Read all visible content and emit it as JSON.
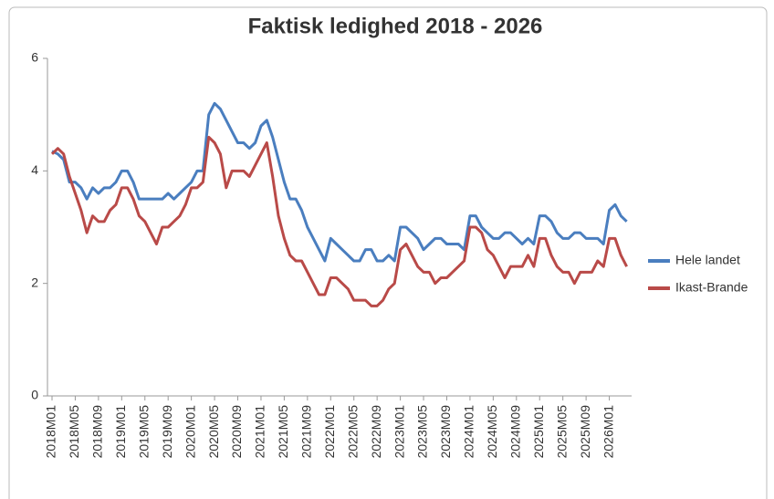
{
  "chart_data": {
    "type": "line",
    "title": "Faktisk ledighed 2018 - 2026",
    "categories": [
      "2018M01",
      null,
      null,
      null,
      "2018M05",
      null,
      null,
      null,
      "2018M09",
      null,
      null,
      null,
      "2019M01",
      null,
      null,
      null,
      "2019M05",
      null,
      null,
      null,
      "2019M09",
      null,
      null,
      null,
      "2020M01",
      null,
      null,
      null,
      "2020M05",
      null,
      null,
      null,
      "2020M09",
      null,
      null,
      null,
      "2021M01",
      null,
      null,
      null,
      "2021M05",
      null,
      null,
      null,
      "2021M09",
      null,
      null,
      null,
      "2022M01",
      null,
      null,
      null,
      "2022M05",
      null,
      null,
      null,
      "2022M09",
      null,
      null,
      null,
      "2023M01",
      null,
      null,
      null,
      "2023M05",
      null,
      null,
      null,
      "2023M09",
      null,
      null,
      null,
      "2024M01",
      null,
      null,
      null,
      "2024M05",
      null,
      null,
      null,
      "2024M09",
      null,
      null,
      null,
      "2025M01",
      null,
      null,
      null,
      "2025M05",
      null,
      null,
      null,
      "2025M09",
      null,
      null,
      null,
      "2026M01",
      null,
      null,
      null
    ],
    "series": [
      {
        "name": "Hele landet",
        "color": "#4a7ebf",
        "values": [
          4.35,
          4.3,
          4.2,
          3.8,
          3.8,
          3.7,
          3.5,
          3.7,
          3.6,
          3.7,
          3.7,
          3.8,
          4.0,
          4.0,
          3.8,
          3.5,
          3.5,
          3.5,
          3.5,
          3.5,
          3.6,
          3.5,
          3.6,
          3.7,
          3.8,
          4.0,
          4.0,
          5.0,
          5.2,
          5.1,
          4.9,
          4.7,
          4.5,
          4.5,
          4.4,
          4.5,
          4.8,
          4.9,
          4.6,
          4.2,
          3.8,
          3.5,
          3.5,
          3.3,
          3.0,
          2.8,
          2.6,
          2.4,
          2.8,
          2.7,
          2.6,
          2.5,
          2.4,
          2.4,
          2.6,
          2.6,
          2.4,
          2.4,
          2.5,
          2.4,
          3.0,
          3.0,
          2.9,
          2.8,
          2.6,
          2.7,
          2.8,
          2.8,
          2.7,
          2.7,
          2.7,
          2.6,
          3.2,
          3.2,
          3.0,
          2.9,
          2.8,
          2.8,
          2.9,
          2.9,
          2.8,
          2.7,
          2.8,
          2.7,
          3.2,
          3.2,
          3.1,
          2.9,
          2.8,
          2.8,
          2.9,
          2.9,
          2.8,
          2.8,
          2.8,
          2.7,
          3.3,
          3.4,
          3.2,
          3.1
        ]
      },
      {
        "name": "Ikast-Brande",
        "color": "#b94a48",
        "values": [
          4.3,
          4.4,
          4.3,
          3.9,
          3.6,
          3.3,
          2.9,
          3.2,
          3.1,
          3.1,
          3.3,
          3.4,
          3.7,
          3.7,
          3.5,
          3.2,
          3.1,
          2.9,
          2.7,
          3.0,
          3.0,
          3.1,
          3.2,
          3.4,
          3.7,
          3.7,
          3.8,
          4.6,
          4.5,
          4.3,
          3.7,
          4.0,
          4.0,
          4.0,
          3.9,
          4.1,
          4.3,
          4.5,
          3.9,
          3.2,
          2.8,
          2.5,
          2.4,
          2.4,
          2.2,
          2.0,
          1.8,
          1.8,
          2.1,
          2.1,
          2.0,
          1.9,
          1.7,
          1.7,
          1.7,
          1.6,
          1.6,
          1.7,
          1.9,
          2.0,
          2.6,
          2.7,
          2.5,
          2.3,
          2.2,
          2.2,
          2.0,
          2.1,
          2.1,
          2.2,
          2.3,
          2.4,
          3.0,
          3.0,
          2.9,
          2.6,
          2.5,
          2.3,
          2.1,
          2.3,
          2.3,
          2.3,
          2.5,
          2.3,
          2.8,
          2.8,
          2.5,
          2.3,
          2.2,
          2.2,
          2.0,
          2.2,
          2.2,
          2.2,
          2.4,
          2.3,
          2.8,
          2.8,
          2.5,
          2.3
        ]
      }
    ],
    "ylim": [
      0,
      6
    ],
    "yticks": [
      0,
      2,
      4,
      6
    ],
    "grid": false,
    "legend": "right"
  }
}
